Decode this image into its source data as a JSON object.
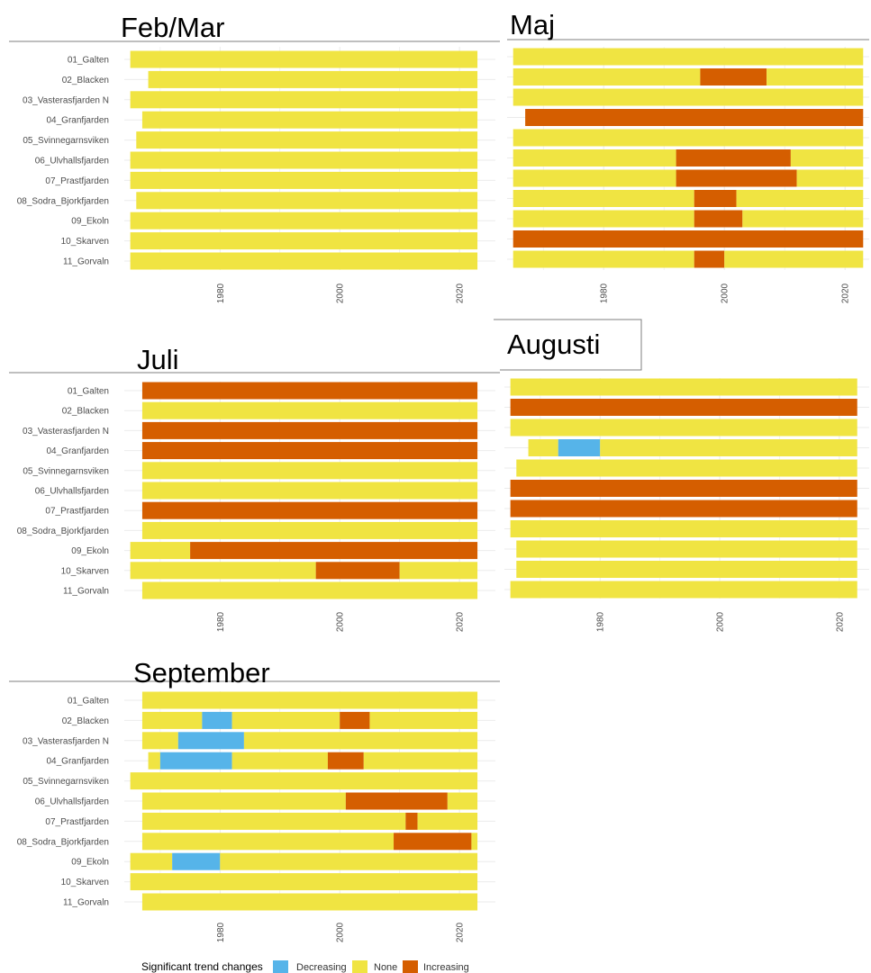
{
  "colors": {
    "Decreasing": "#56b4e9",
    "None": "#f0e442",
    "Increasing": "#d55e00",
    "grid": "#ebebeb",
    "rule": "#7f7f7f"
  },
  "legend": {
    "title": "Significant trend changes",
    "items": [
      {
        "label": "Decreasing",
        "color": "#56b4e9"
      },
      {
        "label": "None",
        "color": "#f0e442"
      },
      {
        "label": "Increasing",
        "color": "#d55e00"
      }
    ]
  },
  "chart_data": [
    {
      "type": "bar",
      "title": "Feb/Mar",
      "categories": [
        "01_Galten",
        "02_Blacken",
        "03_Vasterasfjarden N",
        "04_Granfjarden",
        "05_Svinnegarnsviken",
        "06_Ulvhallsfjarden",
        "07_Prastfjarden",
        "08_Sodra_Bjorkfjarden",
        "09_Ekoln",
        "10_Skarven",
        "11_Gorvaln"
      ],
      "x_ticks": [
        1980,
        2000,
        2020
      ],
      "xlim": [
        1964,
        2026
      ],
      "segments": [
        [
          [
            1965,
            2023,
            "None"
          ]
        ],
        [
          [
            1968,
            2023,
            "None"
          ]
        ],
        [
          [
            1965,
            2023,
            "None"
          ]
        ],
        [
          [
            1967,
            2023,
            "None"
          ]
        ],
        [
          [
            1966,
            2023,
            "None"
          ]
        ],
        [
          [
            1965,
            2023,
            "None"
          ]
        ],
        [
          [
            1965,
            2023,
            "None"
          ]
        ],
        [
          [
            1966,
            2023,
            "None"
          ]
        ],
        [
          [
            1965,
            2023,
            "None"
          ]
        ],
        [
          [
            1965,
            2023,
            "None"
          ]
        ],
        [
          [
            1965,
            2023,
            "None"
          ]
        ]
      ]
    },
    {
      "type": "bar",
      "title": "Maj",
      "categories": [
        "01_Galten",
        "02_Blacken",
        "03_Vasterasfjarden N",
        "04_Granfjarden",
        "05_Svinnegarnsviken",
        "06_Ulvhallsfjarden",
        "07_Prastfjarden",
        "08_Sodra_Bjorkfjarden",
        "09_Ekoln",
        "10_Skarven",
        "11_Gorvaln"
      ],
      "x_ticks": [
        1980,
        2000,
        2020
      ],
      "xlim": [
        1964,
        2024
      ],
      "segments": [
        [
          [
            1965,
            2023,
            "None"
          ]
        ],
        [
          [
            1965,
            1996,
            "None"
          ],
          [
            1996,
            2007,
            "Increasing"
          ],
          [
            2007,
            2023,
            "None"
          ]
        ],
        [
          [
            1965,
            2023,
            "None"
          ]
        ],
        [
          [
            1967,
            2023,
            "Increasing"
          ]
        ],
        [
          [
            1965,
            2023,
            "None"
          ]
        ],
        [
          [
            1965,
            1992,
            "None"
          ],
          [
            1992,
            2011,
            "Increasing"
          ],
          [
            2011,
            2023,
            "None"
          ]
        ],
        [
          [
            1965,
            1992,
            "None"
          ],
          [
            1992,
            2012,
            "Increasing"
          ],
          [
            2012,
            2023,
            "None"
          ]
        ],
        [
          [
            1965,
            1995,
            "None"
          ],
          [
            1995,
            2002,
            "Increasing"
          ],
          [
            2002,
            2023,
            "None"
          ]
        ],
        [
          [
            1965,
            1995,
            "None"
          ],
          [
            1995,
            2003,
            "Increasing"
          ],
          [
            2003,
            2023,
            "None"
          ]
        ],
        [
          [
            1965,
            2023,
            "Increasing"
          ]
        ],
        [
          [
            1965,
            1995,
            "None"
          ],
          [
            1995,
            2000,
            "Increasing"
          ],
          [
            2000,
            2023,
            "None"
          ]
        ]
      ]
    },
    {
      "type": "bar",
      "title": "Juli",
      "categories": [
        "01_Galten",
        "02_Blacken",
        "03_Vasterasfjarden N",
        "04_Granfjarden",
        "05_Svinnegarnsviken",
        "06_Ulvhallsfjarden",
        "07_Prastfjarden",
        "08_Sodra_Bjorkfjarden",
        "09_Ekoln",
        "10_Skarven",
        "11_Gorvaln"
      ],
      "x_ticks": [
        1980,
        2000,
        2020
      ],
      "xlim": [
        1964,
        2026
      ],
      "segments": [
        [
          [
            1967,
            2023,
            "Increasing"
          ]
        ],
        [
          [
            1967,
            2023,
            "None"
          ]
        ],
        [
          [
            1967,
            2023,
            "Increasing"
          ]
        ],
        [
          [
            1967,
            2023,
            "Increasing"
          ]
        ],
        [
          [
            1967,
            2023,
            "None"
          ]
        ],
        [
          [
            1967,
            2023,
            "None"
          ]
        ],
        [
          [
            1967,
            2023,
            "Increasing"
          ]
        ],
        [
          [
            1967,
            2023,
            "None"
          ]
        ],
        [
          [
            1965,
            1975,
            "None"
          ],
          [
            1975,
            2023,
            "Increasing"
          ]
        ],
        [
          [
            1965,
            1996,
            "None"
          ],
          [
            1996,
            2010,
            "Increasing"
          ],
          [
            2010,
            2023,
            "None"
          ]
        ],
        [
          [
            1967,
            2023,
            "None"
          ]
        ]
      ]
    },
    {
      "type": "bar",
      "title": "Augusti",
      "categories": [
        "01_Galten",
        "02_Blacken",
        "03_Vasterasfjarden N",
        "04_Granfjarden",
        "05_Svinnegarnsviken",
        "06_Ulvhallsfjarden",
        "07_Prastfjarden",
        "08_Sodra_Bjorkfjarden",
        "09_Ekoln",
        "10_Skarven",
        "11_Gorvaln"
      ],
      "x_ticks": [
        1980,
        2000,
        2020
      ],
      "xlim": [
        1964,
        2025
      ],
      "segments": [
        [
          [
            1965,
            2023,
            "None"
          ]
        ],
        [
          [
            1965,
            2023,
            "Increasing"
          ]
        ],
        [
          [
            1965,
            2023,
            "None"
          ]
        ],
        [
          [
            1968,
            1973,
            "None"
          ],
          [
            1973,
            1980,
            "Decreasing"
          ],
          [
            1980,
            2023,
            "None"
          ]
        ],
        [
          [
            1966,
            2023,
            "None"
          ]
        ],
        [
          [
            1965,
            2023,
            "Increasing"
          ]
        ],
        [
          [
            1965,
            2023,
            "Increasing"
          ]
        ],
        [
          [
            1965,
            2023,
            "None"
          ]
        ],
        [
          [
            1966,
            2023,
            "None"
          ]
        ],
        [
          [
            1966,
            2023,
            "None"
          ]
        ],
        [
          [
            1965,
            2023,
            "None"
          ]
        ]
      ]
    },
    {
      "type": "bar",
      "title": "September",
      "categories": [
        "01_Galten",
        "02_Blacken",
        "03_Vasterasfjarden N",
        "04_Granfjarden",
        "05_Svinnegarnsviken",
        "06_Ulvhallsfjarden",
        "07_Prastfjarden",
        "08_Sodra_Bjorkfjarden",
        "09_Ekoln",
        "10_Skarven",
        "11_Gorvaln"
      ],
      "x_ticks": [
        1980,
        2000,
        2020
      ],
      "xlim": [
        1964,
        2026
      ],
      "segments": [
        [
          [
            1967,
            2023,
            "None"
          ]
        ],
        [
          [
            1967,
            1977,
            "None"
          ],
          [
            1977,
            1982,
            "Decreasing"
          ],
          [
            1982,
            2000,
            "None"
          ],
          [
            2000,
            2005,
            "Increasing"
          ],
          [
            2005,
            2023,
            "None"
          ]
        ],
        [
          [
            1967,
            1973,
            "None"
          ],
          [
            1973,
            1984,
            "Decreasing"
          ],
          [
            1984,
            2023,
            "None"
          ]
        ],
        [
          [
            1968,
            1970,
            "None"
          ],
          [
            1970,
            1982,
            "Decreasing"
          ],
          [
            1982,
            1998,
            "None"
          ],
          [
            1998,
            2004,
            "Increasing"
          ],
          [
            2004,
            2023,
            "None"
          ]
        ],
        [
          [
            1965,
            2023,
            "None"
          ]
        ],
        [
          [
            1967,
            2001,
            "None"
          ],
          [
            2001,
            2018,
            "Increasing"
          ],
          [
            2018,
            2023,
            "None"
          ]
        ],
        [
          [
            1967,
            2011,
            "None"
          ],
          [
            2011,
            2013,
            "Increasing"
          ],
          [
            2013,
            2023,
            "None"
          ]
        ],
        [
          [
            1967,
            2009,
            "None"
          ],
          [
            2009,
            2022,
            "Increasing"
          ],
          [
            2022,
            2023,
            "None"
          ]
        ],
        [
          [
            1965,
            1972,
            "None"
          ],
          [
            1972,
            1980,
            "Decreasing"
          ],
          [
            1980,
            2023,
            "None"
          ]
        ],
        [
          [
            1965,
            2023,
            "None"
          ]
        ],
        [
          [
            1967,
            2023,
            "None"
          ]
        ]
      ]
    }
  ]
}
